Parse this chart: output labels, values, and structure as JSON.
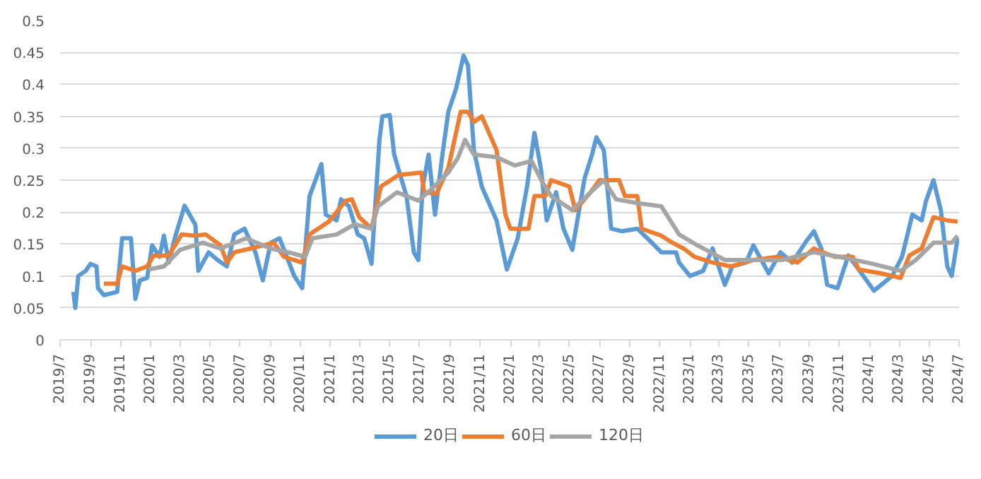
{
  "chart_data": {
    "type": "line",
    "xlim": [
      "2019-07",
      "2024-07"
    ],
    "xticks": [
      {
        "value": "2019-07",
        "label": "2019/7"
      },
      {
        "value": "2019-09",
        "label": "2019/9"
      },
      {
        "value": "2019-11",
        "label": "2019/11"
      },
      {
        "value": "2020-01",
        "label": "2020/1"
      },
      {
        "value": "2020-03",
        "label": "2020/3"
      },
      {
        "value": "2020-05",
        "label": "2020/5"
      },
      {
        "value": "2020-07",
        "label": "2020/7"
      },
      {
        "value": "2020-09",
        "label": "2020/9"
      },
      {
        "value": "2020-11",
        "label": "2020/11"
      },
      {
        "value": "2021-01",
        "label": "2021/1"
      },
      {
        "value": "2021-03",
        "label": "2021/3"
      },
      {
        "value": "2021-05",
        "label": "2021/5"
      },
      {
        "value": "2021-07",
        "label": "2021/7"
      },
      {
        "value": "2021-09",
        "label": "2021/9"
      },
      {
        "value": "2021-11",
        "label": "2021/11"
      },
      {
        "value": "2022-01",
        "label": "2022/1"
      },
      {
        "value": "2022-03",
        "label": "2022/3"
      },
      {
        "value": "2022-05",
        "label": "2022/5"
      },
      {
        "value": "2022-07",
        "label": "2022/7"
      },
      {
        "value": "2022-09",
        "label": "2022/9"
      },
      {
        "value": "2022-11",
        "label": "2022/11"
      },
      {
        "value": "2023-01",
        "label": "2023/1"
      },
      {
        "value": "2023-03",
        "label": "2023/3"
      },
      {
        "value": "2023-05",
        "label": "2023/5"
      },
      {
        "value": "2023-07",
        "label": "2023/7"
      },
      {
        "value": "2023-09",
        "label": "2023/9"
      },
      {
        "value": "2023-11",
        "label": "2023/11"
      },
      {
        "value": "2024-01",
        "label": "2024/1"
      },
      {
        "value": "2024-03",
        "label": "2024/3"
      },
      {
        "value": "2024-05",
        "label": "2024/5"
      },
      {
        "value": "2024-07",
        "label": "2024/7"
      }
    ],
    "ylim": [
      0,
      0.5
    ],
    "yticks": [
      0,
      0.05,
      0.1,
      0.15,
      0.2,
      0.25,
      0.3,
      0.35,
      0.4,
      0.45,
      0.5
    ],
    "grid": "y",
    "legend": "bottom",
    "line_style": "solid",
    "series": [
      {
        "name": "20日",
        "color": "#5b9bd5",
        "x": [
          "2019-07-28",
          "2019-08-01",
          "2019-08-07",
          "2019-08-22",
          "2019-09-01",
          "2019-09-13",
          "2019-09-16",
          "2019-09-28",
          "2019-10-25",
          "2019-11-04",
          "2019-11-22",
          "2019-12-01",
          "2019-12-10",
          "2019-12-25",
          "2020-01-04",
          "2020-01-19",
          "2020-01-28",
          "2020-02-07",
          "2020-02-19",
          "2020-03-10",
          "2020-04-01",
          "2020-04-07",
          "2020-04-28",
          "2020-05-16",
          "2020-06-04",
          "2020-06-19",
          "2020-07-10",
          "2020-08-01",
          "2020-08-16",
          "2020-09-01",
          "2020-09-19",
          "2020-10-19",
          "2020-11-04",
          "2020-11-19",
          "2020-12-13",
          "2020-12-22",
          "2021-01-13",
          "2021-01-22",
          "2021-02-07",
          "2021-02-25",
          "2021-03-10",
          "2021-03-25",
          "2021-04-10",
          "2021-04-16",
          "2021-05-01",
          "2021-05-10",
          "2021-06-04",
          "2021-06-19",
          "2021-06-28",
          "2021-07-07",
          "2021-07-19",
          "2021-08-01",
          "2021-08-16",
          "2021-08-28",
          "2021-09-13",
          "2021-09-28",
          "2021-10-07",
          "2021-10-19",
          "2021-11-04",
          "2021-12-04",
          "2021-12-25",
          "2022-01-16",
          "2022-02-04",
          "2022-02-19",
          "2022-03-04",
          "2022-03-16",
          "2022-04-04",
          "2022-04-19",
          "2022-05-07",
          "2022-06-01",
          "2022-06-16",
          "2022-06-25",
          "2022-07-10",
          "2022-07-25",
          "2022-08-16",
          "2022-09-16",
          "2022-10-13",
          "2022-11-04",
          "2022-12-04",
          "2022-12-10",
          "2023-01-01",
          "2023-01-28",
          "2023-02-16",
          "2023-03-13",
          "2023-03-28",
          "2023-04-25",
          "2023-05-10",
          "2023-06-10",
          "2023-07-04",
          "2023-07-28",
          "2023-08-25",
          "2023-09-10",
          "2023-09-25",
          "2023-10-07",
          "2023-10-28",
          "2023-11-19",
          "2023-12-10",
          "2024-01-10",
          "2024-02-16",
          "2024-03-07",
          "2024-03-28",
          "2024-04-16",
          "2024-04-25",
          "2024-05-10",
          "2024-05-25",
          "2024-06-07",
          "2024-06-16",
          "2024-06-28"
        ],
        "values": [
          0.075,
          0.05,
          0.1,
          0.108,
          0.119,
          0.115,
          0.081,
          0.07,
          0.075,
          0.159,
          0.159,
          0.064,
          0.093,
          0.097,
          0.148,
          0.13,
          0.163,
          0.121,
          0.159,
          0.21,
          0.18,
          0.108,
          0.137,
          0.125,
          0.115,
          0.165,
          0.174,
          0.137,
          0.093,
          0.152,
          0.159,
          0.1,
          0.081,
          0.225,
          0.275,
          0.196,
          0.187,
          0.22,
          0.209,
          0.165,
          0.159,
          0.119,
          0.313,
          0.35,
          0.352,
          0.29,
          0.225,
          0.137,
          0.125,
          0.24,
          0.29,
          0.196,
          0.29,
          0.357,
          0.394,
          0.445,
          0.43,
          0.297,
          0.24,
          0.187,
          0.11,
          0.159,
          0.24,
          0.324,
          0.269,
          0.187,
          0.231,
          0.174,
          0.141,
          0.253,
          0.29,
          0.317,
          0.297,
          0.174,
          0.17,
          0.174,
          0.154,
          0.137,
          0.137,
          0.121,
          0.1,
          0.108,
          0.143,
          0.086,
          0.115,
          0.121,
          0.148,
          0.104,
          0.137,
          0.121,
          0.154,
          0.17,
          0.143,
          0.086,
          0.081,
          0.132,
          0.11,
          0.077,
          0.1,
          0.13,
          0.196,
          0.187,
          0.218,
          0.25,
          0.203,
          0.115,
          0.1,
          0.159
        ]
      },
      {
        "name": "60日",
        "color": "#ed7d31",
        "x": [
          "2019-09-28",
          "2019-10-25",
          "2019-11-04",
          "2019-12-01",
          "2019-12-25",
          "2020-01-07",
          "2020-02-07",
          "2020-03-04",
          "2020-04-01",
          "2020-04-22",
          "2020-05-22",
          "2020-06-04",
          "2020-06-19",
          "2020-07-22",
          "2020-09-07",
          "2020-09-28",
          "2020-11-04",
          "2020-11-19",
          "2020-12-28",
          "2021-02-01",
          "2021-02-13",
          "2021-02-28",
          "2021-03-25",
          "2021-04-13",
          "2021-05-19",
          "2021-07-04",
          "2021-07-10",
          "2021-08-04",
          "2021-08-28",
          "2021-09-22",
          "2021-10-07",
          "2021-10-19",
          "2021-11-04",
          "2021-12-04",
          "2021-12-22",
          "2022-01-01",
          "2022-02-07",
          "2022-02-19",
          "2022-03-13",
          "2022-03-25",
          "2022-05-01",
          "2022-05-13",
          "2022-06-13",
          "2022-07-01",
          "2022-08-10",
          "2022-08-22",
          "2022-09-16",
          "2022-09-25",
          "2022-11-04",
          "2022-11-22",
          "2022-12-19",
          "2023-01-10",
          "2023-02-16",
          "2023-03-25",
          "2023-05-10",
          "2023-06-28",
          "2023-08-07",
          "2023-09-10",
          "2023-10-22",
          "2023-11-28",
          "2023-12-10",
          "2024-01-25",
          "2024-03-04",
          "2024-03-22",
          "2024-04-16",
          "2024-05-10",
          "2024-06-07",
          "2024-06-28"
        ],
        "values": [
          0.088,
          0.088,
          0.115,
          0.108,
          0.115,
          0.132,
          0.132,
          0.165,
          0.163,
          0.165,
          0.148,
          0.121,
          0.137,
          0.143,
          0.152,
          0.13,
          0.121,
          0.165,
          0.185,
          0.218,
          0.22,
          0.192,
          0.174,
          0.24,
          0.258,
          0.262,
          0.231,
          0.229,
          0.269,
          0.357,
          0.357,
          0.341,
          0.35,
          0.297,
          0.196,
          0.174,
          0.174,
          0.225,
          0.225,
          0.25,
          0.24,
          0.203,
          0.231,
          0.25,
          0.25,
          0.225,
          0.225,
          0.174,
          0.163,
          0.154,
          0.143,
          0.13,
          0.121,
          0.115,
          0.125,
          0.13,
          0.121,
          0.143,
          0.13,
          0.13,
          0.11,
          0.104,
          0.097,
          0.132,
          0.143,
          0.192,
          0.187,
          0.185
        ]
      },
      {
        "name": "120日",
        "color": "#a5a5a5",
        "x": [
          "2019-12-28",
          "2020-01-28",
          "2020-03-01",
          "2020-04-16",
          "2020-05-22",
          "2020-07-13",
          "2020-09-01",
          "2020-10-07",
          "2020-11-10",
          "2020-11-25",
          "2021-01-13",
          "2021-02-19",
          "2021-03-25",
          "2021-04-07",
          "2021-05-16",
          "2021-06-28",
          "2021-07-25",
          "2021-08-28",
          "2021-09-16",
          "2021-10-01",
          "2021-10-19",
          "2021-12-04",
          "2022-01-10",
          "2022-02-13",
          "2022-03-07",
          "2022-03-25",
          "2022-05-07",
          "2022-06-13",
          "2022-07-10",
          "2022-08-04",
          "2022-09-16",
          "2022-11-04",
          "2022-12-10",
          "2023-01-16",
          "2023-03-13",
          "2023-05-10",
          "2023-07-07",
          "2023-09-10",
          "2023-11-01",
          "2024-01-07",
          "2024-03-04",
          "2024-04-04",
          "2024-05-10",
          "2024-06-16",
          "2024-06-28"
        ],
        "values": [
          0.11,
          0.115,
          0.141,
          0.152,
          0.143,
          0.159,
          0.143,
          0.137,
          0.13,
          0.159,
          0.165,
          0.181,
          0.174,
          0.209,
          0.231,
          0.218,
          0.236,
          0.262,
          0.284,
          0.313,
          0.29,
          0.286,
          0.273,
          0.28,
          0.247,
          0.225,
          0.203,
          0.231,
          0.25,
          0.22,
          0.214,
          0.209,
          0.165,
          0.148,
          0.125,
          0.125,
          0.125,
          0.137,
          0.13,
          0.119,
          0.108,
          0.125,
          0.152,
          0.152,
          0.163
        ]
      }
    ]
  }
}
